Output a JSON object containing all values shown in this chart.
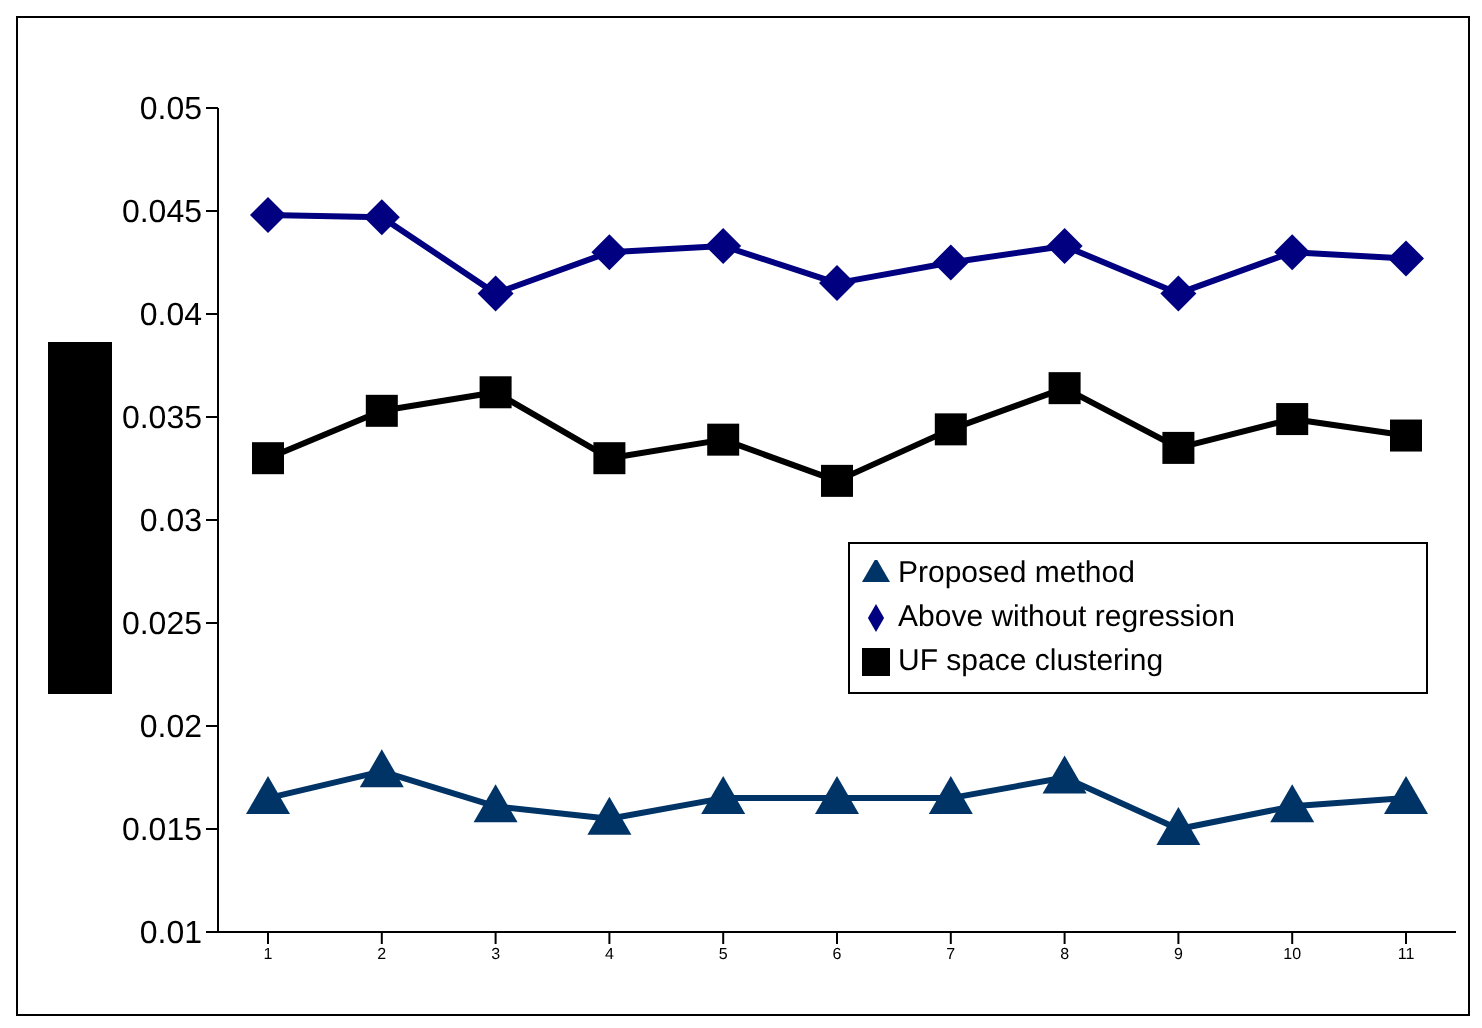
{
  "chart_data": {
    "type": "line",
    "categories": [
      "1",
      "2",
      "3",
      "4",
      "5",
      "6",
      "7",
      "8",
      "9",
      "10",
      "11"
    ],
    "series": [
      {
        "name": "Proposed method",
        "color": "#003366",
        "marker": "triangle",
        "values": [
          0.0165,
          0.0178,
          0.0161,
          0.0155,
          0.0165,
          0.0165,
          0.0165,
          0.0175,
          0.015,
          0.0161,
          0.0165
        ]
      },
      {
        "name": "Above without regression",
        "color": "#000080",
        "marker": "diamond",
        "values": [
          0.0448,
          0.0447,
          0.041,
          0.043,
          0.0433,
          0.0415,
          0.0425,
          0.0433,
          0.041,
          0.043,
          0.0427
        ]
      },
      {
        "name": "UF space clustering",
        "color": "#000000",
        "marker": "square",
        "values": [
          0.033,
          0.0353,
          0.0362,
          0.033,
          0.0339,
          0.0319,
          0.0344,
          0.0364,
          0.0335,
          0.0349,
          0.0341
        ]
      }
    ],
    "ylim": [
      0.01,
      0.05
    ],
    "yticks": [
      0.01,
      0.015,
      0.02,
      0.025,
      0.03,
      0.035,
      0.04,
      0.045,
      0.05
    ],
    "grid": false,
    "legend": "right",
    "line_style": "solid"
  }
}
